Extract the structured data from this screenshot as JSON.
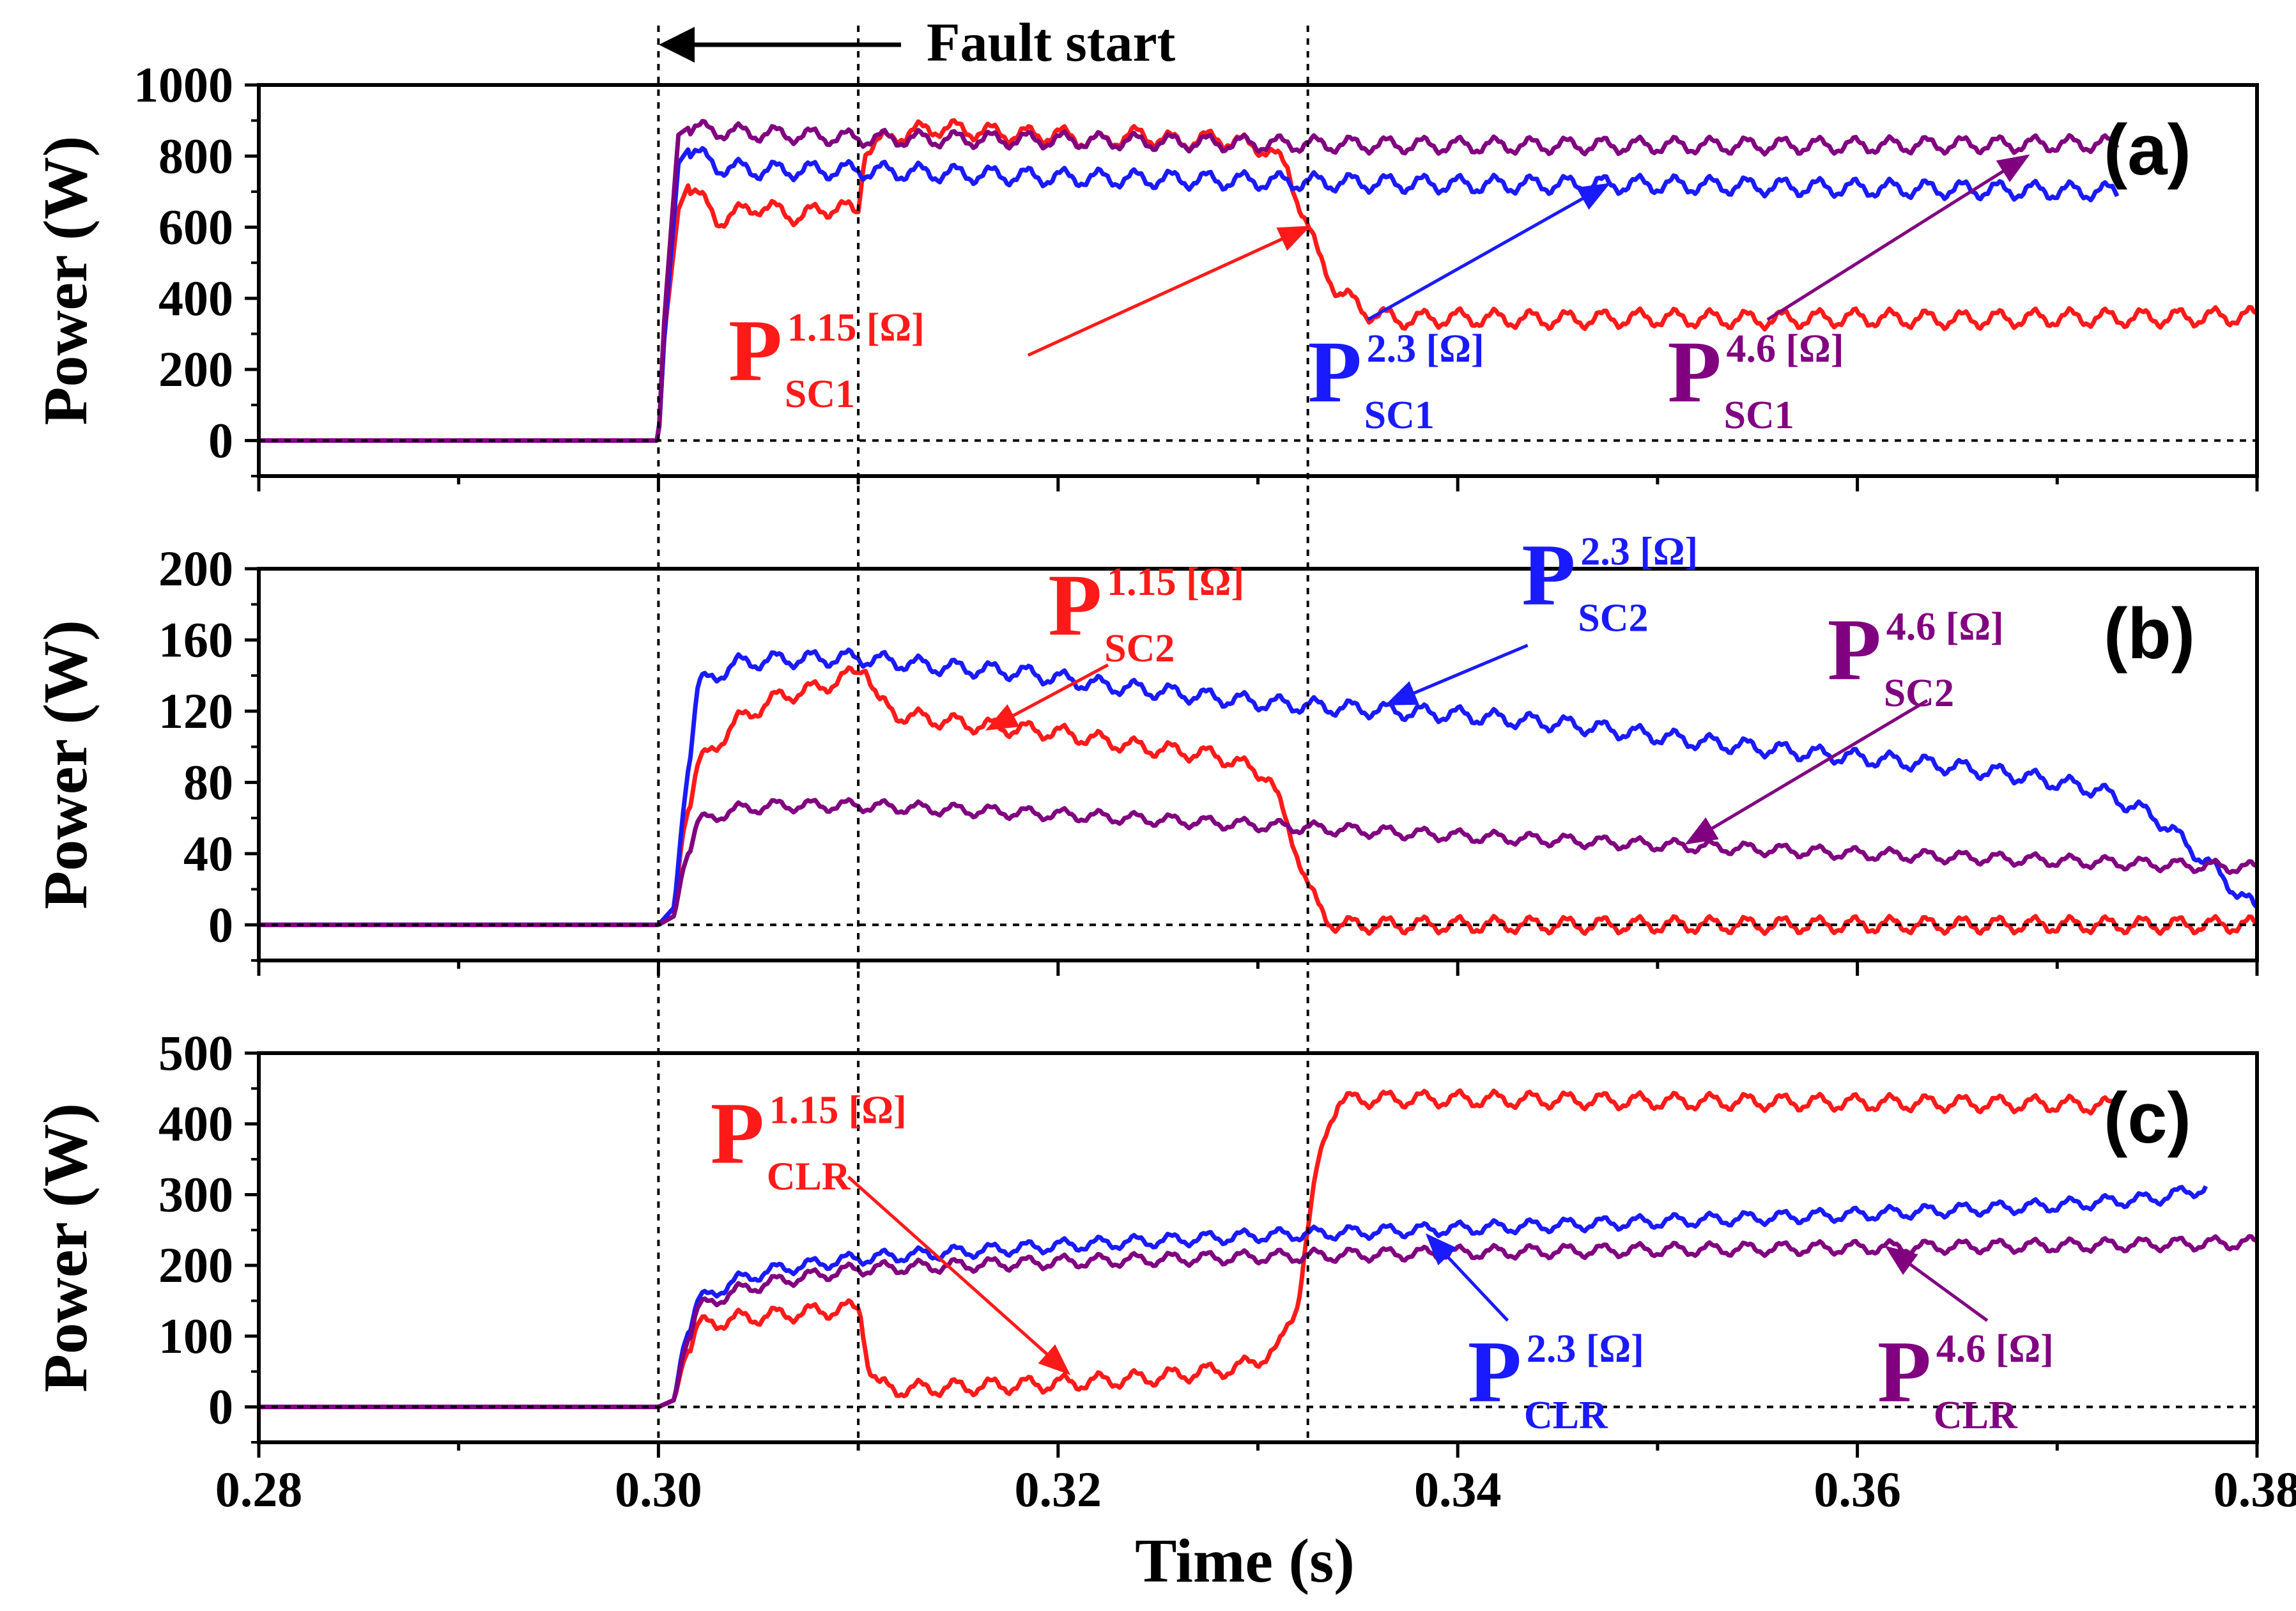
{
  "colors": {
    "red": "#ff1a1a",
    "blue": "#1a1aff",
    "purple": "#800080",
    "axis": "#000000"
  },
  "chart_data": {
    "type": "line",
    "xlabel": "Time (s)",
    "xlim": [
      0.28,
      0.38
    ],
    "xticks": [
      "0.28",
      "0.30",
      "0.32",
      "0.34",
      "0.36",
      "0.38"
    ],
    "fault_annotation": "Fault start",
    "vlines": [
      0.3,
      0.31,
      0.3325
    ],
    "panels": [
      {
        "label": "(a)",
        "ylabel": "Power (W)",
        "ylim": [
          -100,
          1000
        ],
        "yticks": [
          "0",
          "200",
          "400",
          "600",
          "800",
          "1000"
        ],
        "series": [
          {
            "name": "P_SC1 1.15 [Ω]",
            "color": "red",
            "x": [
              0.28,
              0.3,
              0.3003,
              0.301,
              0.3015,
              0.303,
              0.305,
              0.307,
              0.309,
              0.3098,
              0.31,
              0.3103,
              0.312,
              0.314,
              0.316,
              0.318,
              0.32,
              0.322,
              0.324,
              0.326,
              0.328,
              0.3305,
              0.3315,
              0.3325,
              0.333,
              0.334,
              0.3355,
              0.337,
              0.34,
              0.345,
              0.35,
              0.355,
              0.36,
              0.365,
              0.37,
              0.375,
              0.38
            ],
            "values": [
              0,
              0,
              300,
              650,
              720,
              620,
              660,
              630,
              660,
              640,
              645,
              820,
              860,
              880,
              870,
              860,
              860,
              840,
              860,
              840,
              850,
              820,
              760,
              600,
              520,
              420,
              360,
              340,
              345,
              340,
              345,
              340,
              345,
              340,
              345,
              345,
              350
            ],
            "ripple": 22
          },
          {
            "name": "P_SC1 2.3 [Ω]",
            "color": "blue",
            "x": [
              0.28,
              0.3,
              0.3003,
              0.301,
              0.3015,
              0.303,
              0.305,
              0.31,
              0.315,
              0.32,
              0.33,
              0.34,
              0.35,
              0.36,
              0.373
            ],
            "values": [
              0,
              0,
              300,
              780,
              820,
              770,
              760,
              760,
              750,
              740,
              730,
              720,
              720,
              710,
              700
            ],
            "ripple": 22
          },
          {
            "name": "P_SC1 4.6 [Ω]",
            "color": "purple",
            "x": [
              0.28,
              0.3,
              0.3003,
              0.301,
              0.3015,
              0.303,
              0.31,
              0.32,
              0.33,
              0.34,
              0.35,
              0.36,
              0.373
            ],
            "values": [
              0,
              0,
              350,
              860,
              880,
              870,
              850,
              845,
              835,
              830,
              830,
              830,
              835
            ],
            "ripple": 20
          }
        ],
        "annotations": [
          {
            "main": "P",
            "sup": "1.15 [Ω]",
            "sub": "SC1",
            "color": "red",
            "x": 0.3035,
            "y": 170,
            "arrow_from": [
              0.3185,
              240
            ],
            "arrow_to": [
              0.3325,
              600
            ]
          },
          {
            "main": "P",
            "sup": "2.3 [Ω]",
            "sub": "SC1",
            "color": "blue",
            "x": 0.3325,
            "y": 110,
            "arrow_from": [
              0.3355,
              340
            ],
            "arrow_to": [
              0.3475,
              720
            ]
          },
          {
            "main": "P",
            "sup": "4.6 [Ω]",
            "sub": "SC1",
            "color": "purple",
            "x": 0.3505,
            "y": 110,
            "arrow_from": [
              0.3555,
              340
            ],
            "arrow_to": [
              0.3685,
              800
            ]
          }
        ]
      },
      {
        "label": "(b)",
        "ylabel": "Power (W)",
        "ylim": [
          -20,
          200
        ],
        "yticks": [
          "0",
          "40",
          "80",
          "120",
          "160",
          "200"
        ],
        "series": [
          {
            "name": "P_SC2 1.15 [Ω]",
            "color": "red",
            "x": [
              0.28,
              0.3,
              0.3008,
              0.3012,
              0.302,
              0.304,
              0.306,
              0.308,
              0.31,
              0.3103,
              0.311,
              0.312,
              0.316,
              0.32,
              0.324,
              0.328,
              0.3305,
              0.331,
              0.332,
              0.3325,
              0.333,
              0.3335,
              0.334,
              0.38
            ],
            "values": [
              0,
              0,
              10,
              50,
              90,
              115,
              128,
              133,
              142,
              148,
              125,
              118,
              112,
              108,
              100,
              95,
              84,
              70,
              40,
              22,
              10,
              3,
              0,
              0
            ],
            "ripple": 4
          },
          {
            "name": "P_SC2 2.3 [Ω]",
            "color": "blue",
            "x": [
              0.28,
              0.3,
              0.3008,
              0.3012,
              0.302,
              0.304,
              0.306,
              0.31,
              0.314,
              0.318,
              0.322,
              0.326,
              0.33,
              0.334,
              0.34,
              0.346,
              0.352,
              0.358,
              0.364,
              0.368,
              0.372,
              0.375,
              0.3775,
              0.38
            ],
            "values": [
              0,
              0,
              10,
              60,
              135,
              147,
              149,
              150,
              145,
              142,
              135,
              130,
              125,
              122,
              118,
              112,
              103,
              96,
              90,
              84,
              76,
              60,
              35,
              8
            ],
            "ripple": 4
          },
          {
            "name": "P_SC2 4.6 [Ω]",
            "color": "purple",
            "x": [
              0.28,
              0.3,
              0.3008,
              0.3012,
              0.302,
              0.304,
              0.306,
              0.31,
              0.32,
              0.33,
              0.34,
              0.35,
              0.36,
              0.37,
              0.38
            ],
            "values": [
              0,
              0,
              5,
              30,
              58,
              65,
              67,
              67,
              62,
              56,
              50,
              45,
              40,
              36,
              32
            ],
            "ripple": 3
          }
        ],
        "annotations": [
          {
            "main": "P",
            "sup": "1.15 [Ω]",
            "sub": "SC2",
            "color": "red",
            "x": 0.3195,
            "y": 163,
            "arrow_from": [
              0.3225,
              146
            ],
            "arrow_to": [
              0.3165,
              110
            ]
          },
          {
            "main": "P",
            "sup": "2.3 [Ω]",
            "sub": "SC2",
            "color": "blue",
            "x": 0.3432,
            "y": 180,
            "arrow_from": [
              0.3435,
              157
            ],
            "arrow_to": [
              0.3365,
              124
            ]
          },
          {
            "main": "P",
            "sup": "4.6 [Ω]",
            "sub": "SC2",
            "color": "purple",
            "x": 0.3585,
            "y": 138,
            "arrow_from": [
              0.3635,
              126
            ],
            "arrow_to": [
              0.3515,
              46
            ]
          }
        ]
      },
      {
        "label": "(c)",
        "ylabel": "Power (W)",
        "ylim": [
          -50,
          500
        ],
        "yticks": [
          "0",
          "100",
          "200",
          "300",
          "400",
          "500"
        ],
        "series": [
          {
            "name": "P_CLR 1.15 [Ω]",
            "color": "red",
            "x": [
              0.28,
              0.3,
              0.3008,
              0.3012,
              0.302,
              0.304,
              0.306,
              0.31,
              0.3101,
              0.3105,
              0.311,
              0.312,
              0.314,
              0.32,
              0.325,
              0.329,
              0.331,
              0.332,
              0.3325,
              0.333,
              0.3335,
              0.334,
              0.335,
              0.34,
              0.35,
              0.36,
              0.37,
              0.373
            ],
            "values": [
              0,
              0,
              10,
              60,
              115,
              125,
              130,
              140,
              138,
              60,
              30,
              25,
              27,
              33,
              42,
              55,
              80,
              150,
              250,
              340,
              400,
              430,
              435,
              435,
              432,
              430,
              428,
              425
            ],
            "ripple": 10
          },
          {
            "name": "P_CLR 2.3 [Ω]",
            "color": "blue",
            "x": [
              0.28,
              0.3,
              0.3008,
              0.3012,
              0.302,
              0.304,
              0.306,
              0.31,
              0.32,
              0.33,
              0.34,
              0.35,
              0.36,
              0.37,
              0.375,
              0.3775
            ],
            "values": [
              0,
              0,
              10,
              80,
              150,
              180,
              195,
              210,
              228,
              242,
              252,
              262,
              272,
              285,
              295,
              310
            ],
            "ripple": 8
          },
          {
            "name": "P_CLR 4.6 [Ω]",
            "color": "purple",
            "x": [
              0.28,
              0.3,
              0.3008,
              0.3012,
              0.302,
              0.304,
              0.306,
              0.31,
              0.32,
              0.33,
              0.34,
              0.35,
              0.36,
              0.37,
              0.38
            ],
            "values": [
              0,
              0,
              10,
              70,
              140,
              165,
              178,
              195,
              205,
              212,
              218,
              222,
              225,
              228,
              232
            ],
            "ripple": 8
          }
        ],
        "annotations": [
          {
            "main": "P",
            "sup": "1.15 [Ω]",
            "sub": "CLR",
            "color": "red",
            "x": 0.3026,
            "y": 345,
            "arrow_from": [
              0.3095,
              325
            ],
            "arrow_to": [
              0.3205,
              48
            ]
          },
          {
            "main": "P",
            "sup": "2.3 [Ω]",
            "sub": "CLR",
            "color": "blue",
            "x": 0.3405,
            "y": 8,
            "arrow_from": [
              0.3425,
              122
            ],
            "arrow_to": [
              0.3385,
              242
            ]
          },
          {
            "main": "P",
            "sup": "4.6 [Ω]",
            "sub": "CLR",
            "color": "purple",
            "x": 0.361,
            "y": 8,
            "arrow_from": [
              0.3665,
              122
            ],
            "arrow_to": [
              0.3615,
              225
            ]
          }
        ]
      }
    ]
  }
}
